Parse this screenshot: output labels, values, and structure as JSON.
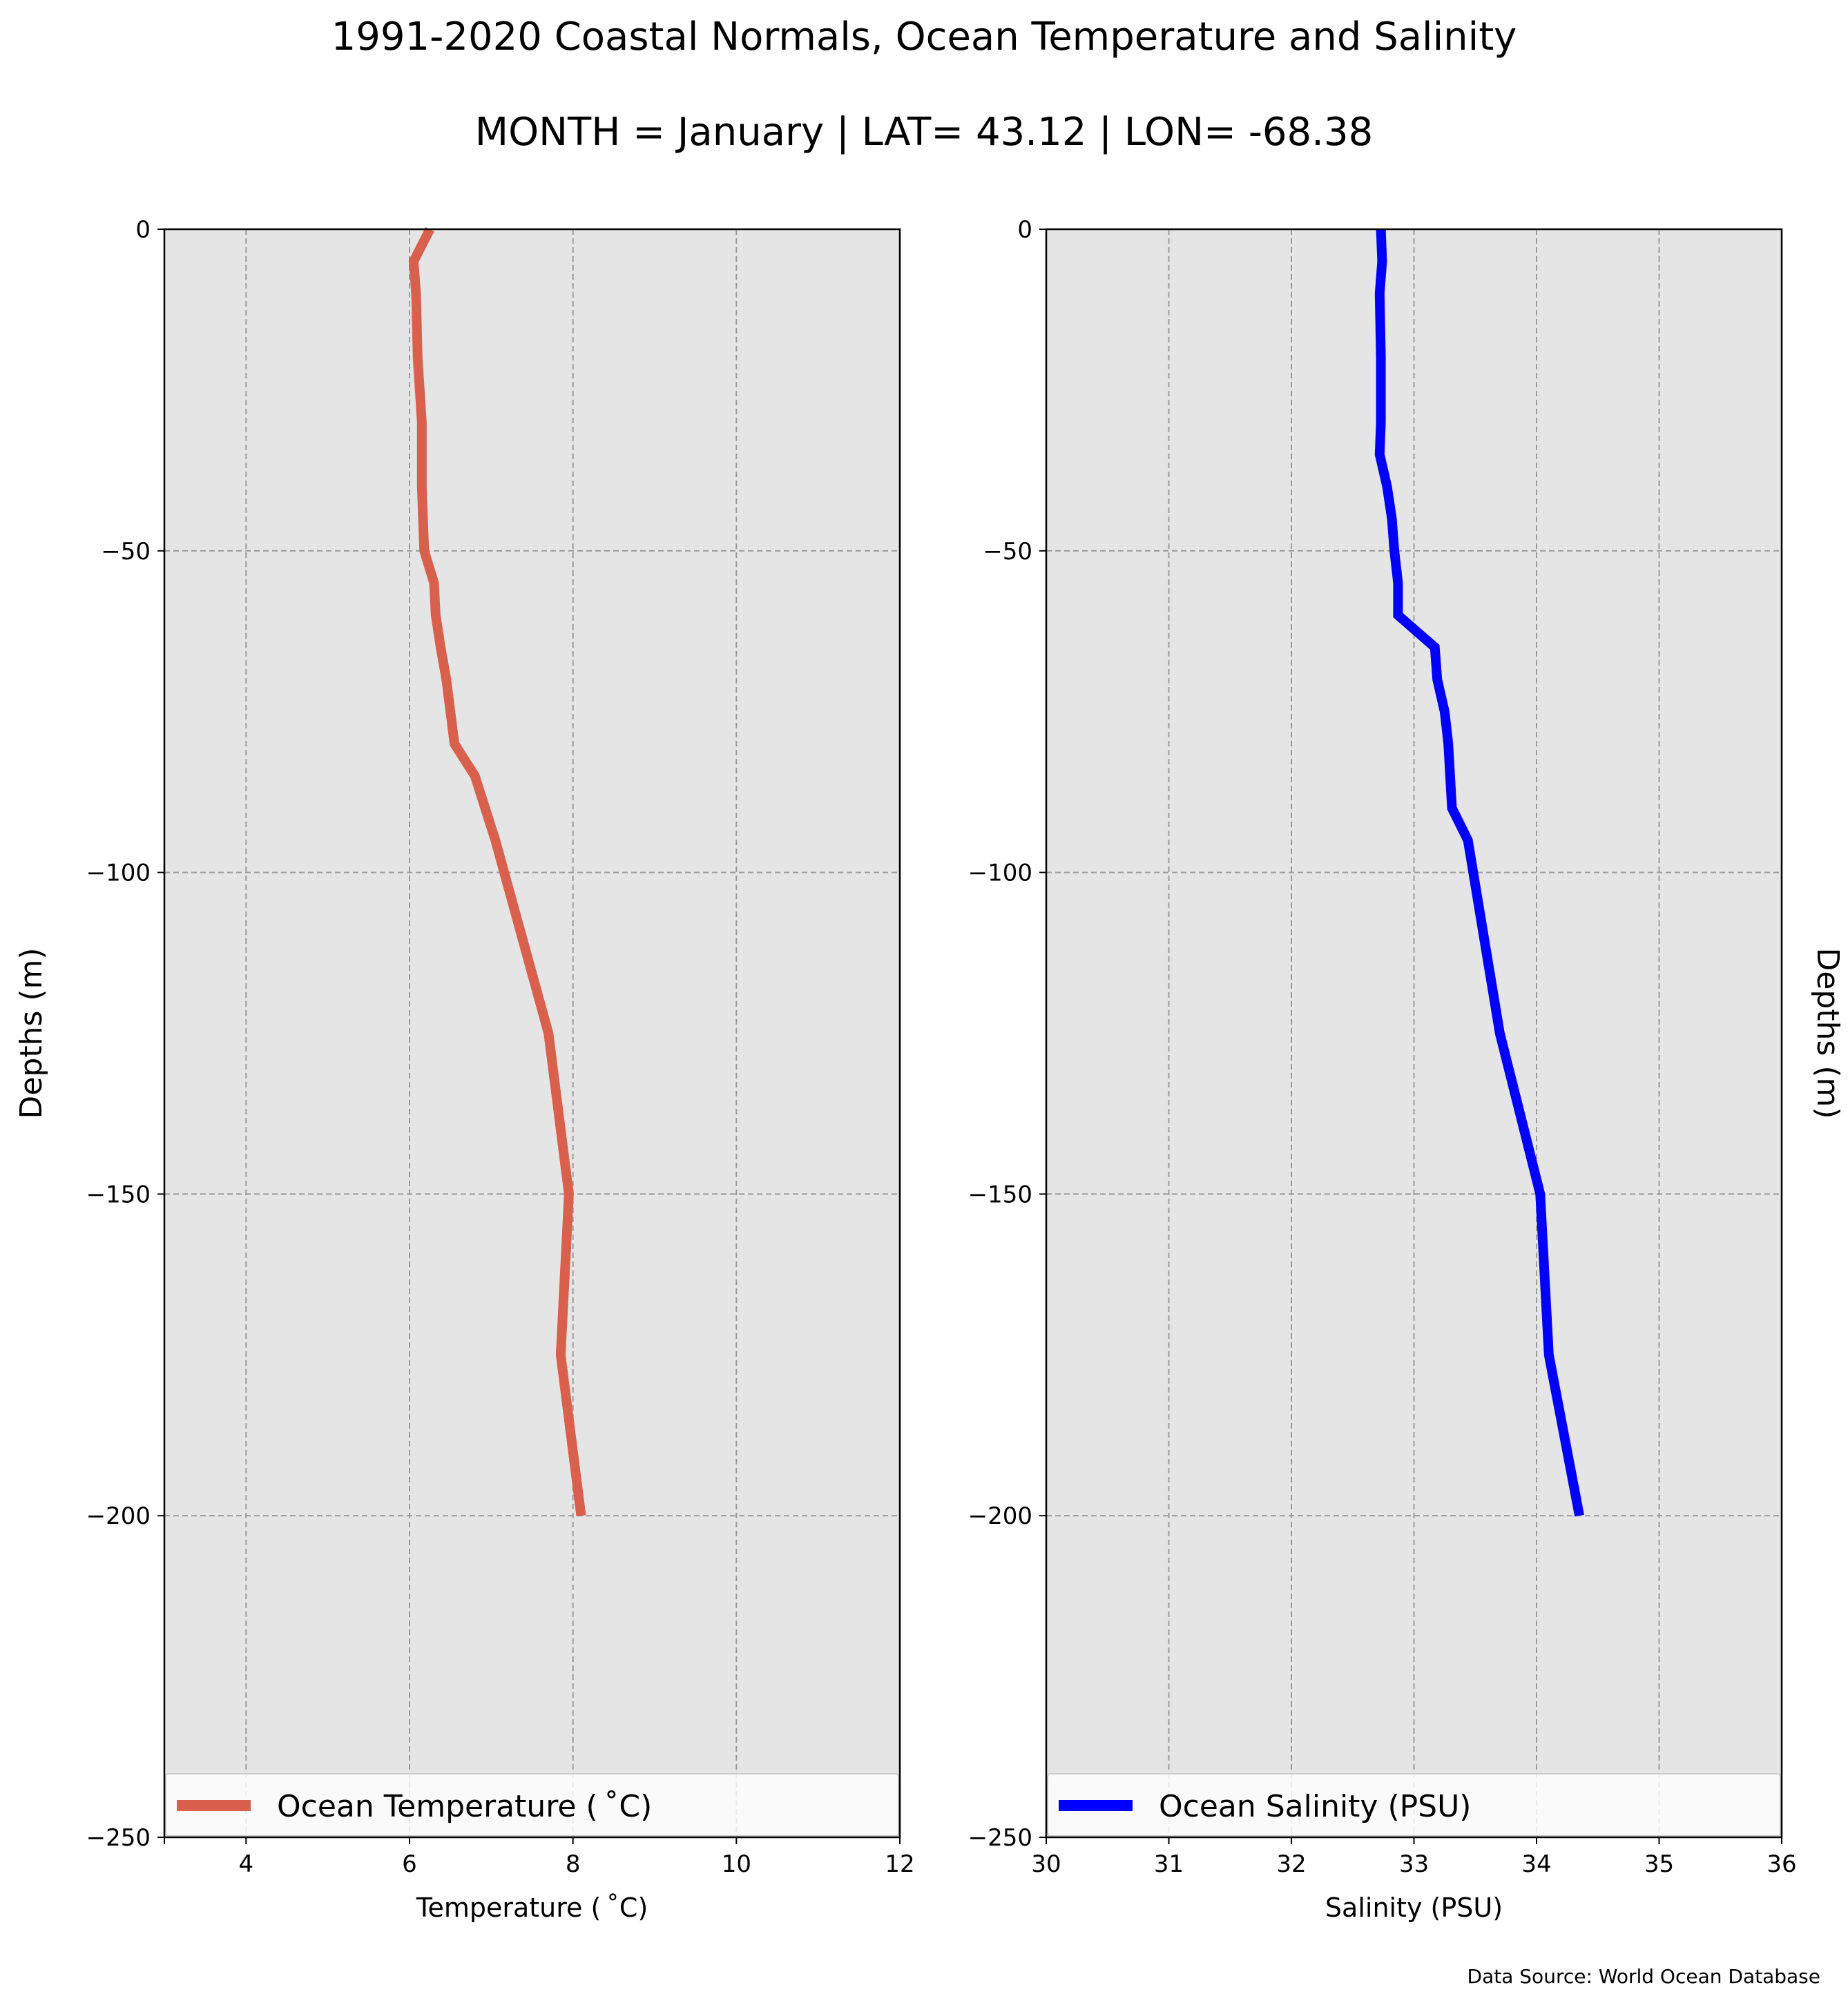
{
  "figure": {
    "title": "1991-2020 Coastal Normals, Ocean Temperature and Salinity",
    "subtitle": "MONTH = January | LAT= 43.12 | LON= -68.38",
    "source": "Data Source: World Ocean Database"
  },
  "chart_data": [
    {
      "type": "line",
      "orientation": "vertical-profile",
      "xlabel": "Temperature ($^\\circ$C)",
      "xlabel_display": "Temperature ( ˚C)",
      "ylabel": "Depths (m)",
      "xlim": [
        3,
        12
      ],
      "ylim": [
        -250,
        0
      ],
      "xticks": [
        4,
        6,
        8,
        10,
        12
      ],
      "yticks": [
        0,
        -50,
        -100,
        -150,
        -200,
        -250
      ],
      "xtick_labels": [
        "4",
        "6",
        "8",
        "10",
        "12"
      ],
      "ytick_labels": [
        "0",
        "−50",
        "−100",
        "−150",
        "−200",
        "−250"
      ],
      "grid": true,
      "legend_position": "bottom",
      "background": "#e5e5e5",
      "series": [
        {
          "name": "Ocean Temperature ( ˚C)",
          "color": "#d9604c",
          "points": [
            {
              "x": 6.25,
              "y": 0
            },
            {
              "x": 6.05,
              "y": -5
            },
            {
              "x": 6.08,
              "y": -10
            },
            {
              "x": 6.1,
              "y": -20
            },
            {
              "x": 6.15,
              "y": -30
            },
            {
              "x": 6.15,
              "y": -40
            },
            {
              "x": 6.18,
              "y": -50
            },
            {
              "x": 6.3,
              "y": -55
            },
            {
              "x": 6.32,
              "y": -60
            },
            {
              "x": 6.38,
              "y": -65
            },
            {
              "x": 6.45,
              "y": -70
            },
            {
              "x": 6.5,
              "y": -75
            },
            {
              "x": 6.55,
              "y": -80
            },
            {
              "x": 6.8,
              "y": -85
            },
            {
              "x": 7.05,
              "y": -95
            },
            {
              "x": 7.7,
              "y": -125
            },
            {
              "x": 7.95,
              "y": -150
            },
            {
              "x": 7.85,
              "y": -175
            },
            {
              "x": 8.1,
              "y": -200
            }
          ]
        }
      ]
    },
    {
      "type": "line",
      "orientation": "vertical-profile",
      "xlabel": "Salinity (PSU)",
      "ylabel": "Depths (m)",
      "xlim": [
        30,
        36
      ],
      "ylim": [
        -250,
        0
      ],
      "xticks": [
        30,
        31,
        32,
        33,
        34,
        35,
        36
      ],
      "yticks": [
        0,
        -50,
        -100,
        -150,
        -200,
        -250
      ],
      "xtick_labels": [
        "30",
        "31",
        "32",
        "33",
        "34",
        "35",
        "36"
      ],
      "ytick_labels": [
        "0",
        "−50",
        "−100",
        "−150",
        "−200",
        "−250"
      ],
      "grid": true,
      "legend_position": "bottom",
      "background": "#e5e5e5",
      "series": [
        {
          "name": "Ocean Salinity (PSU)",
          "color": "#0000ff",
          "points": [
            {
              "x": 32.73,
              "y": 0
            },
            {
              "x": 32.74,
              "y": -5
            },
            {
              "x": 32.72,
              "y": -10
            },
            {
              "x": 32.73,
              "y": -20
            },
            {
              "x": 32.73,
              "y": -30
            },
            {
              "x": 32.72,
              "y": -35
            },
            {
              "x": 32.78,
              "y": -40
            },
            {
              "x": 32.82,
              "y": -45
            },
            {
              "x": 32.84,
              "y": -50
            },
            {
              "x": 32.87,
              "y": -55
            },
            {
              "x": 32.87,
              "y": -60
            },
            {
              "x": 33.17,
              "y": -65
            },
            {
              "x": 33.19,
              "y": -70
            },
            {
              "x": 33.25,
              "y": -75
            },
            {
              "x": 33.28,
              "y": -80
            },
            {
              "x": 33.31,
              "y": -90
            },
            {
              "x": 33.44,
              "y": -95
            },
            {
              "x": 33.7,
              "y": -125
            },
            {
              "x": 34.03,
              "y": -150
            },
            {
              "x": 34.1,
              "y": -175
            },
            {
              "x": 34.35,
              "y": -200
            }
          ]
        }
      ]
    }
  ]
}
